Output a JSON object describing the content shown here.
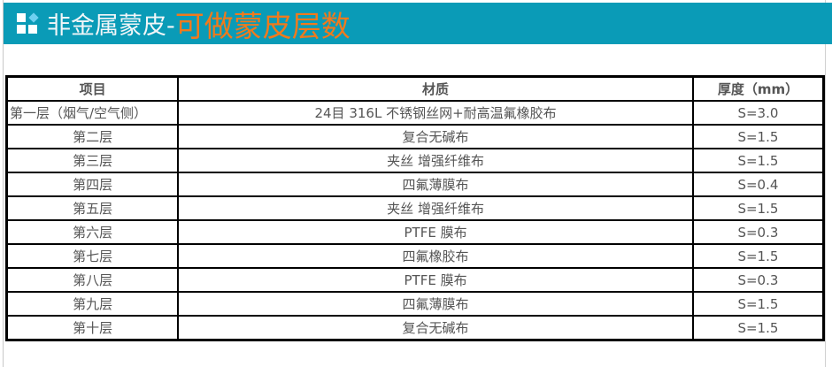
{
  "banner": {
    "title_prefix": "非金属蒙皮-",
    "title_highlight": "可做蒙皮层数",
    "background": "#0a9bb7",
    "highlight_color": "#f07a1c"
  },
  "table": {
    "headers": [
      "项目",
      "材质",
      "厚度（mm）"
    ],
    "rows": [
      [
        "第一层（烟气/空气侧）",
        "24目 316L 不锈钢丝网+耐高温氟橡胶布",
        "S=3.0"
      ],
      [
        "第二层",
        "复合无碱布",
        "S=1.5"
      ],
      [
        "第三层",
        "夹丝 增强纤维布",
        "S=1.5"
      ],
      [
        "第四层",
        "四氟薄膜布",
        "S=0.4"
      ],
      [
        "第五层",
        "夹丝 增强纤维布",
        "S=1.5"
      ],
      [
        "第六层",
        "PTFE 膜布",
        "S=0.3"
      ],
      [
        "第七层",
        "四氟橡胶布",
        "S=1.5"
      ],
      [
        "第八层",
        "PTFE 膜布",
        "S=0.3"
      ],
      [
        "第九层",
        "四氟薄膜布",
        "S=1.5"
      ],
      [
        "第十层",
        "复合无碱布",
        "S=1.5"
      ]
    ]
  }
}
